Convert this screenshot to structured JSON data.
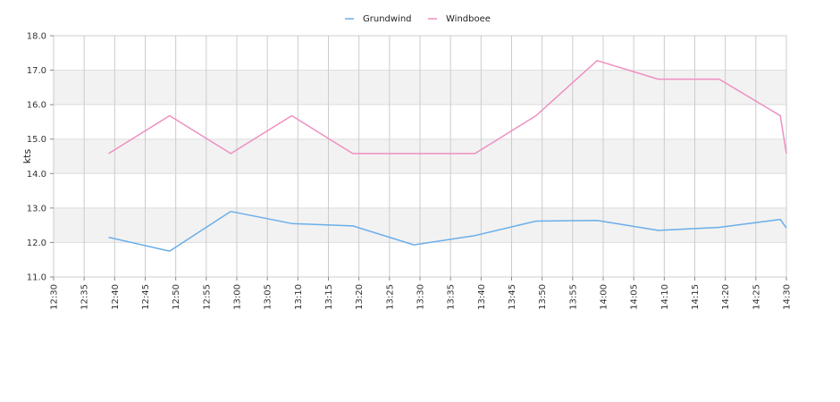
{
  "chart_data": {
    "type": "line",
    "ylabel": "kts",
    "ylim": [
      11.0,
      18.0
    ],
    "y_ticks": [
      "11.0",
      "12.0",
      "13.0",
      "14.0",
      "15.0",
      "16.0",
      "17.0",
      "18.0"
    ],
    "x_ticks": [
      "12:30",
      "12:35",
      "12:40",
      "12:45",
      "12:50",
      "12:55",
      "13:00",
      "13:05",
      "13:10",
      "13:15",
      "13:20",
      "13:25",
      "13:30",
      "13:35",
      "13:40",
      "13:45",
      "13:50",
      "13:55",
      "14:00",
      "14:05",
      "14:10",
      "14:15",
      "14:20",
      "14:25",
      "14:30"
    ],
    "xlim": [
      "12:30",
      "14:30"
    ],
    "grid": true,
    "legend_position": "top-center",
    "series": [
      {
        "name": "Grundwind",
        "color": "#6aaeea",
        "points": [
          [
            "12:39",
            12.15
          ],
          [
            "12:49",
            11.75
          ],
          [
            "12:59",
            12.9
          ],
          [
            "13:09",
            12.55
          ],
          [
            "13:19",
            12.48
          ],
          [
            "13:29",
            11.93
          ],
          [
            "13:39",
            12.2
          ],
          [
            "13:49",
            12.62
          ],
          [
            "13:59",
            12.64
          ],
          [
            "14:09",
            12.35
          ],
          [
            "14:19",
            12.44
          ],
          [
            "14:29",
            12.67
          ],
          [
            "14:30",
            12.42
          ]
        ]
      },
      {
        "name": "Windboee",
        "color": "#ee8fc1",
        "points": [
          [
            "12:39",
            14.58
          ],
          [
            "12:49",
            15.68
          ],
          [
            "12:59",
            14.58
          ],
          [
            "13:09",
            15.68
          ],
          [
            "13:19",
            14.58
          ],
          [
            "13:29",
            14.58
          ],
          [
            "13:39",
            14.58
          ],
          [
            "13:49",
            15.68
          ],
          [
            "13:59",
            17.28
          ],
          [
            "14:09",
            16.74
          ],
          [
            "14:19",
            16.74
          ],
          [
            "14:29",
            15.68
          ],
          [
            "14:30",
            14.58
          ]
        ]
      }
    ]
  }
}
